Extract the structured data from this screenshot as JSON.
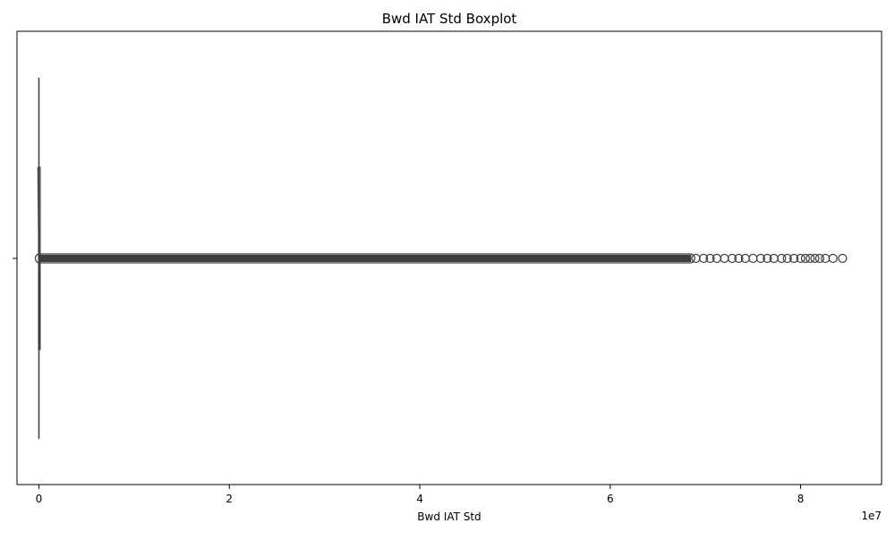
{
  "chart_data": {
    "type": "boxplot",
    "title": "Bwd IAT Std Boxplot",
    "xlabel": "Bwd IAT Std",
    "ylabel": "",
    "x_offset_label": "1e7",
    "xlim": [
      -2300000,
      88500000
    ],
    "x_ticks": [
      {
        "value": 0,
        "label": "0"
      },
      {
        "value": 20000000,
        "label": "2"
      },
      {
        "value": 40000000,
        "label": "4"
      },
      {
        "value": 60000000,
        "label": "6"
      },
      {
        "value": 80000000,
        "label": "8"
      }
    ],
    "box": {
      "whisker_low": 0,
      "q1": 0,
      "median": 0,
      "q3": 0,
      "whisker_high": 0
    },
    "outliers_continuous_range": [
      0,
      68500000
    ],
    "outliers_sparse": [
      69000000,
      69800000,
      70500000,
      71200000,
      72000000,
      72800000,
      73500000,
      74200000,
      75000000,
      75800000,
      76500000,
      77200000,
      78000000,
      78600000,
      79300000,
      80000000,
      80500000,
      81000000,
      81500000,
      82000000,
      82600000,
      83400000,
      84400000
    ],
    "grid": false,
    "colors": {
      "box_line": "#3d3d3d",
      "marker_edge": "#3d3d3d"
    }
  }
}
